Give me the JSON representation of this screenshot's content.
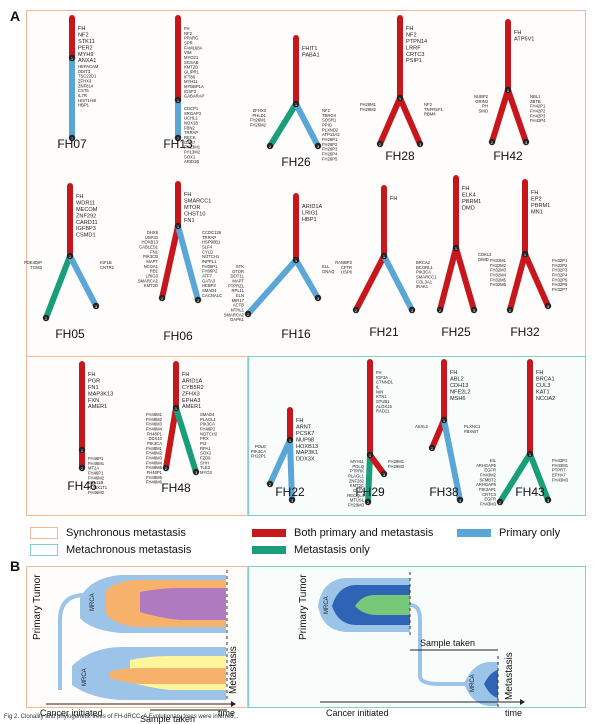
{
  "panels": {
    "a": "A",
    "b": "B"
  },
  "colors": {
    "shared": "#c8161d",
    "primary": "#5aa6d6",
    "metastasis": "#1a9e7a",
    "sync_border": "#f3b79a",
    "meta_border": "#7fd3c3"
  },
  "trees": [
    {
      "id": "FH07",
      "name": "FH07",
      "trunk": [
        "FH",
        "NF2",
        "STK11",
        "PER2",
        "MYH9",
        "ANXA1"
      ],
      "genes_primary": [
        "HEPACAM",
        "DDIT3",
        "TSC22D1",
        "ZFHX3",
        "ZNF814",
        "CST5",
        "IL7R",
        "HIST1H4I",
        "HBP1"
      ],
      "genes_meta": []
    },
    {
      "id": "FH13",
      "name": "FH13",
      "trunk": [
        "FH",
        "NF2",
        "PPARG",
        "SPR",
        "FAM168A",
        "VIM",
        "MYO21",
        "SGSAB",
        "KMT2D",
        "GLIPR1",
        "IFT88",
        "MYH11",
        "MYBBP1A",
        "IGSF3",
        "GABARAP"
      ],
      "genes_primary": [
        "CDCP1",
        "SRGAP3",
        "UCHL1",
        "NOX1B",
        "FBN2",
        "TRRAP",
        "RECK",
        "GAS7",
        "FH13M1",
        "FH13M2",
        "SOX1",
        "ARID1B"
      ],
      "genes_meta": []
    },
    {
      "id": "FH26",
      "name": "FH26",
      "trunk": [
        "FHIT1",
        "PABA1"
      ],
      "genes_primary": [
        "NF2",
        "TBRG4",
        "SOSR1",
        "PPIG",
        "PLXND2",
        "ATP13A3",
        "FH26P1",
        "FH26P2",
        "FH26P3",
        "FH26P4",
        "FH26P5"
      ],
      "genes_meta": [
        "ZFHX3",
        "PHLD1",
        "FH26M1",
        "FH26M2"
      ]
    },
    {
      "id": "FH28",
      "name": "FH28",
      "trunk": [
        "FH",
        "NF2",
        "PTPN14",
        "LRRF",
        "CRTC3",
        "PSIP1"
      ],
      "genes_primary": [
        "NF2",
        "TNFRSF1",
        "RBM4"
      ],
      "genes_meta": [
        "FH28M1",
        "FH28M2"
      ]
    },
    {
      "id": "FH42",
      "name": "FH42",
      "trunk": [
        "FH",
        "ATP6V1"
      ],
      "genes_primary": [
        "NBL1",
        "ZBTB",
        "FH42P1",
        "FH42P2",
        "FH42P3",
        "FH42P4"
      ],
      "genes_meta": [
        "NUBP2",
        "GRIN3",
        "PH",
        "SMO"
      ]
    },
    {
      "id": "FH05",
      "name": "FH05",
      "trunk": [
        "FH",
        "WDR11",
        "MECOM",
        "ZNF292",
        "CARD11",
        "IGFBP3",
        "CSMD1"
      ],
      "genes_primary": [
        "KIF1B",
        "CNTR2"
      ],
      "genes_meta": [
        "PDE4DIP",
        "TGM3"
      ]
    },
    {
      "id": "FH06",
      "name": "FH06",
      "trunk": [
        "FH",
        "SMARCC1",
        "MTOR",
        "CHST10",
        "FN1"
      ],
      "genes_primary": [
        "CCDC136",
        "TRRAP",
        "HSP90B1",
        "SLF4",
        "CYLD",
        "NOTCH1",
        "INPPL1",
        "FH06P1",
        "FH06P2",
        "ATF7",
        "GATA3",
        "HEBP3",
        "SMAD4",
        "CACNA1C"
      ],
      "genes_meta": [
        "DHX9",
        "USP33",
        "HOXB13",
        "CABLES1",
        "FN1",
        "PIK3CB",
        "MAPT",
        "NCOA1",
        "RB1",
        "LRIG3",
        "SMARCA2",
        "KMT2D"
      ]
    },
    {
      "id": "FH16",
      "name": "FH16",
      "trunk": [
        "ARID1A",
        "LRIG1",
        "HBP1"
      ],
      "genes_primary": [
        "ELL",
        "GNAQ"
      ],
      "genes_meta": [
        "STK",
        "OTOR",
        "DOT1L",
        "MAPT",
        "PTPRZ1",
        "RPL11",
        "ELN",
        "MIR17",
        "ACTB",
        "NTHL1",
        "SMARCA2",
        "DAPK1"
      ]
    },
    {
      "id": "FH21",
      "name": "FH21",
      "trunk": [
        "FH"
      ],
      "genes_primary": [
        "BRCA2",
        "BCORL1",
        "PIK3CA",
        "SMARCC1",
        "COL3A1",
        "IRAK1"
      ],
      "genes_meta": [
        "RANBP2",
        "CFTR",
        "USP6"
      ]
    },
    {
      "id": "FH25",
      "name": "FH25",
      "trunk": [
        "FH",
        "ELK4",
        "PBRM1",
        "DMD"
      ],
      "genes_primary": [
        "CDKL2",
        "DIMD"
      ],
      "genes_meta": []
    },
    {
      "id": "FH32",
      "name": "FH32",
      "trunk": [
        "FH",
        "EP2",
        "PBRM1",
        "MN1"
      ],
      "genes_primary": [
        "FH32P1",
        "FH32P2",
        "FH32P3",
        "FH32P4",
        "FH32P5",
        "FH32P6",
        "FH32P7"
      ],
      "genes_meta": [
        "FH32M1",
        "FH32M2",
        "FH32M3",
        "FH32M4",
        "FH32M5",
        "FH32M6"
      ]
    },
    {
      "id": "FH46",
      "name": "FH46",
      "trunk": [
        "FH",
        "PGR",
        "FN1",
        "MAP3K13",
        "FXN",
        "AMER1"
      ],
      "genes_primary": [
        "FH46P1",
        "FH46M1",
        "MT2A",
        "FH46P1",
        "FH46M2",
        "BCL11B",
        "RUNX1T1",
        "FH46M2"
      ],
      "genes_meta": []
    },
    {
      "id": "FH48",
      "name": "FH48",
      "trunk": [
        "FH",
        "ARID1A",
        "CYB5R2",
        "ZFHX3",
        "EPHA3",
        "AMER1"
      ],
      "genes_primary": [
        "SMAD4",
        "PLAGL1",
        "PIK3CA",
        "FH48P2",
        "NOTCH2",
        "PRX",
        "PI3",
        "RPA1",
        "SOX2",
        "FZD9",
        "SHH",
        "TLE3",
        "MYO3"
      ],
      "genes_meta": [
        "FH48M1",
        "FH48M2",
        "FH48M3",
        "FH48M4",
        "FH48P1",
        "DDX10",
        "PIK3CA",
        "FH48M1",
        "FH48M2",
        "FH48M3",
        "FH48M4",
        "FH48M5",
        "FH48P1",
        "FH48M5",
        "FH48M6"
      ]
    },
    {
      "id": "FH22",
      "name": "FH22",
      "trunk": [
        "FH",
        "ARNT",
        "PCSK7",
        "NUP98",
        "HOXB13",
        "MAP3K1",
        "DDX3X"
      ],
      "genes_primary": [],
      "genes_meta": [
        "POLE",
        "PIK3CA",
        "FH22P1"
      ]
    },
    {
      "id": "FH29",
      "name": "FH29",
      "trunk": [
        "FH",
        "IGF3A",
        "CTNND1",
        "IL",
        "NIN",
        "KTN1",
        "STUB1",
        "ALOX15",
        "RAD21"
      ],
      "genes_primary": [
        "FH29M1",
        "FH29M2"
      ],
      "genes_meta": [
        "MYH11",
        "POLQ",
        "PTPRK",
        "PLAGL1",
        "ZNF282",
        "KMT2C",
        "GLC1",
        "RECQL4",
        "MTUS1",
        "FH29M3"
      ]
    },
    {
      "id": "FH38",
      "name": "FH38",
      "trunk": [
        "FH",
        "ABL2",
        "CDH13",
        "NFE2L2",
        "MSH6"
      ],
      "genes_primary": [
        "PLXNC1",
        "FBXW7"
      ],
      "genes_meta": [
        "ASXL2"
      ]
    },
    {
      "id": "FH43",
      "name": "FH43",
      "trunk": [
        "FH",
        "BRCA1",
        "CUL3",
        "KAT1",
        "NCOA2"
      ],
      "genes_primary": [
        "FH43P1",
        "FH43M1",
        "PTPRT",
        "EPHA7",
        "FH43M3"
      ],
      "genes_meta": [
        "KIL",
        "ARHGAP5",
        "EGFR",
        "FH43M2",
        "SFMBT2",
        "ARHGAP5",
        "PIK3AP1",
        "CRTC3",
        "EGFR",
        "FH43M3"
      ]
    }
  ],
  "legend": {
    "sync": "Synchronous metastasis",
    "meta": "Metachronous metastasis",
    "shared": "Both primary and metastasis",
    "primary": "Primary only",
    "met_only": "Metastasis only"
  },
  "diagram": {
    "primary_tumor": "Primary Tumor",
    "metastasis": "Metastasis",
    "mrca": "MRCA",
    "cancer_initiated": "Cancer initiated",
    "sample_taken": "Sample taken",
    "time": "time"
  },
  "caption": "Fig 2. Clonality and phylogenetic trees of FH-dRCC. A Evolutionary trees were inferred..."
}
